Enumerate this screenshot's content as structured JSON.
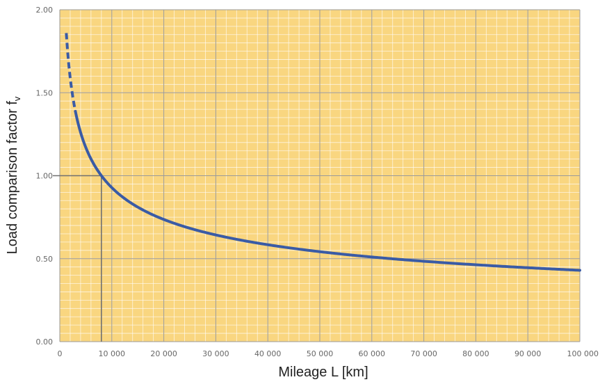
{
  "chart_data": {
    "type": "line",
    "title": "",
    "xlabel": "Mileage L [km]",
    "ylabel": "Load comparison factor f",
    "ylabel_sub": "v",
    "xlim": [
      0,
      100000
    ],
    "ylim": [
      0,
      2.0
    ],
    "x_ticks": [
      0,
      10000,
      20000,
      30000,
      40000,
      50000,
      60000,
      70000,
      80000,
      90000,
      100000
    ],
    "x_tick_labels": [
      "0",
      "10 000",
      "20 000",
      "30 000",
      "40 000",
      "50 000",
      "60 000",
      "70 000",
      "80 000",
      "90 000",
      "100 000"
    ],
    "y_ticks": [
      0,
      0.5,
      1.0,
      1.5,
      2.0
    ],
    "y_tick_labels": [
      "0.00",
      "0.50",
      "1.00",
      "1.50",
      "2.00"
    ],
    "grid": true,
    "legend": "none",
    "colors": {
      "background": "#f9d680",
      "grid_major": "#9a9a9a",
      "grid_minor": "#ffffff",
      "series": "#3a5ba5",
      "reference": "#707070"
    },
    "reference_point": {
      "x": 8000,
      "y": 1.0
    },
    "series": [
      {
        "x": [
          1250,
          1500,
          2000,
          2500,
          3000,
          3500,
          4000,
          5000,
          6000,
          7000,
          8000,
          10000,
          12000,
          15000,
          20000,
          25000,
          30000,
          35000,
          40000,
          45000,
          50000,
          55000,
          60000,
          65000,
          70000,
          75000,
          80000,
          85000,
          90000,
          95000,
          100000
        ],
        "y": [
          2.0,
          1.88,
          1.71,
          1.59,
          1.49,
          1.42,
          1.36,
          1.26,
          1.19,
          1.05,
          1.0,
          0.93,
          0.87,
          0.81,
          0.74,
          0.69,
          0.65,
          0.62,
          0.59,
          0.565,
          0.545,
          0.53,
          0.515,
          0.5,
          0.49,
          0.48,
          0.47,
          0.46,
          0.45,
          0.44,
          0.43
        ],
        "dashed_until_x": 3000
      }
    ]
  }
}
